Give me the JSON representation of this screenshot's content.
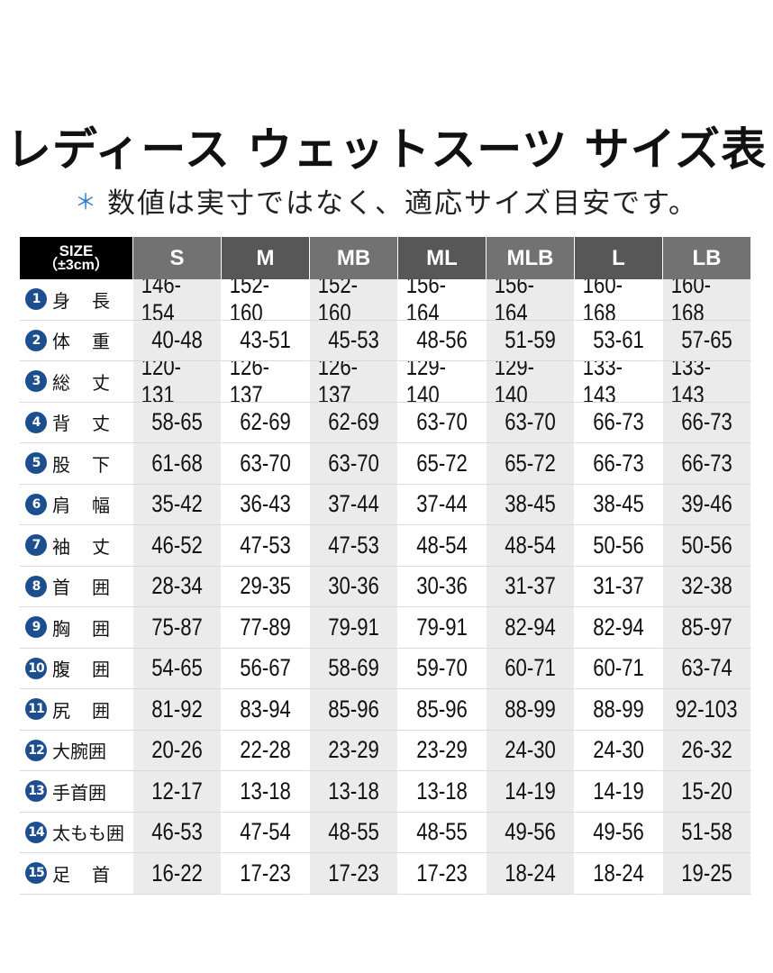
{
  "header": {
    "title": "レディース ウェットスーツ サイズ表",
    "note_mark": "＊",
    "note": "数値は実寸ではなく、適応サイズ目安です。"
  },
  "table": {
    "corner": {
      "label": "SIZE",
      "tolerance": "（±3cm）"
    },
    "sizes": [
      "S",
      "M",
      "MB",
      "ML",
      "MLB",
      "L",
      "LB"
    ],
    "rows": [
      {
        "no": "1",
        "label": "身長",
        "values": [
          "146-154",
          "152-160",
          "152-160",
          "156-164",
          "156-164",
          "160-168",
          "160-168"
        ]
      },
      {
        "no": "2",
        "label": "体重",
        "values": [
          "40-48",
          "43-51",
          "45-53",
          "48-56",
          "51-59",
          "53-61",
          "57-65"
        ]
      },
      {
        "no": "3",
        "label": "総丈",
        "values": [
          "120-131",
          "126-137",
          "126-137",
          "129-140",
          "129-140",
          "133-143",
          "133-143"
        ]
      },
      {
        "no": "4",
        "label": "背丈",
        "values": [
          "58-65",
          "62-69",
          "62-69",
          "63-70",
          "63-70",
          "66-73",
          "66-73"
        ]
      },
      {
        "no": "5",
        "label": "股下",
        "values": [
          "61-68",
          "63-70",
          "63-70",
          "65-72",
          "65-72",
          "66-73",
          "66-73"
        ]
      },
      {
        "no": "6",
        "label": "肩幅",
        "values": [
          "35-42",
          "36-43",
          "37-44",
          "37-44",
          "38-45",
          "38-45",
          "39-46"
        ]
      },
      {
        "no": "7",
        "label": "袖丈",
        "values": [
          "46-52",
          "47-53",
          "47-53",
          "48-54",
          "48-54",
          "50-56",
          "50-56"
        ]
      },
      {
        "no": "8",
        "label": "首囲",
        "values": [
          "28-34",
          "29-35",
          "30-36",
          "30-36",
          "31-37",
          "31-37",
          "32-38"
        ]
      },
      {
        "no": "9",
        "label": "胸囲",
        "values": [
          "75-87",
          "77-89",
          "79-91",
          "79-91",
          "82-94",
          "82-94",
          "85-97"
        ]
      },
      {
        "no": "10",
        "label": "腹囲",
        "values": [
          "54-65",
          "56-67",
          "58-69",
          "59-70",
          "60-71",
          "60-71",
          "63-74"
        ]
      },
      {
        "no": "11",
        "label": "尻囲",
        "values": [
          "81-92",
          "83-94",
          "85-96",
          "85-96",
          "88-99",
          "88-99",
          "92-103"
        ]
      },
      {
        "no": "12",
        "label": "大腕囲",
        "values": [
          "20-26",
          "22-28",
          "23-29",
          "23-29",
          "24-30",
          "24-30",
          "26-32"
        ]
      },
      {
        "no": "13",
        "label": "手首囲",
        "values": [
          "12-17",
          "13-18",
          "13-18",
          "13-18",
          "14-19",
          "14-19",
          "15-20"
        ]
      },
      {
        "no": "14",
        "label": "太もも囲",
        "values": [
          "46-53",
          "47-54",
          "48-55",
          "48-55",
          "49-56",
          "49-56",
          "51-58"
        ]
      },
      {
        "no": "15",
        "label": "足首",
        "values": [
          "16-22",
          "17-23",
          "17-23",
          "17-23",
          "18-24",
          "18-24",
          "19-25"
        ]
      }
    ]
  }
}
